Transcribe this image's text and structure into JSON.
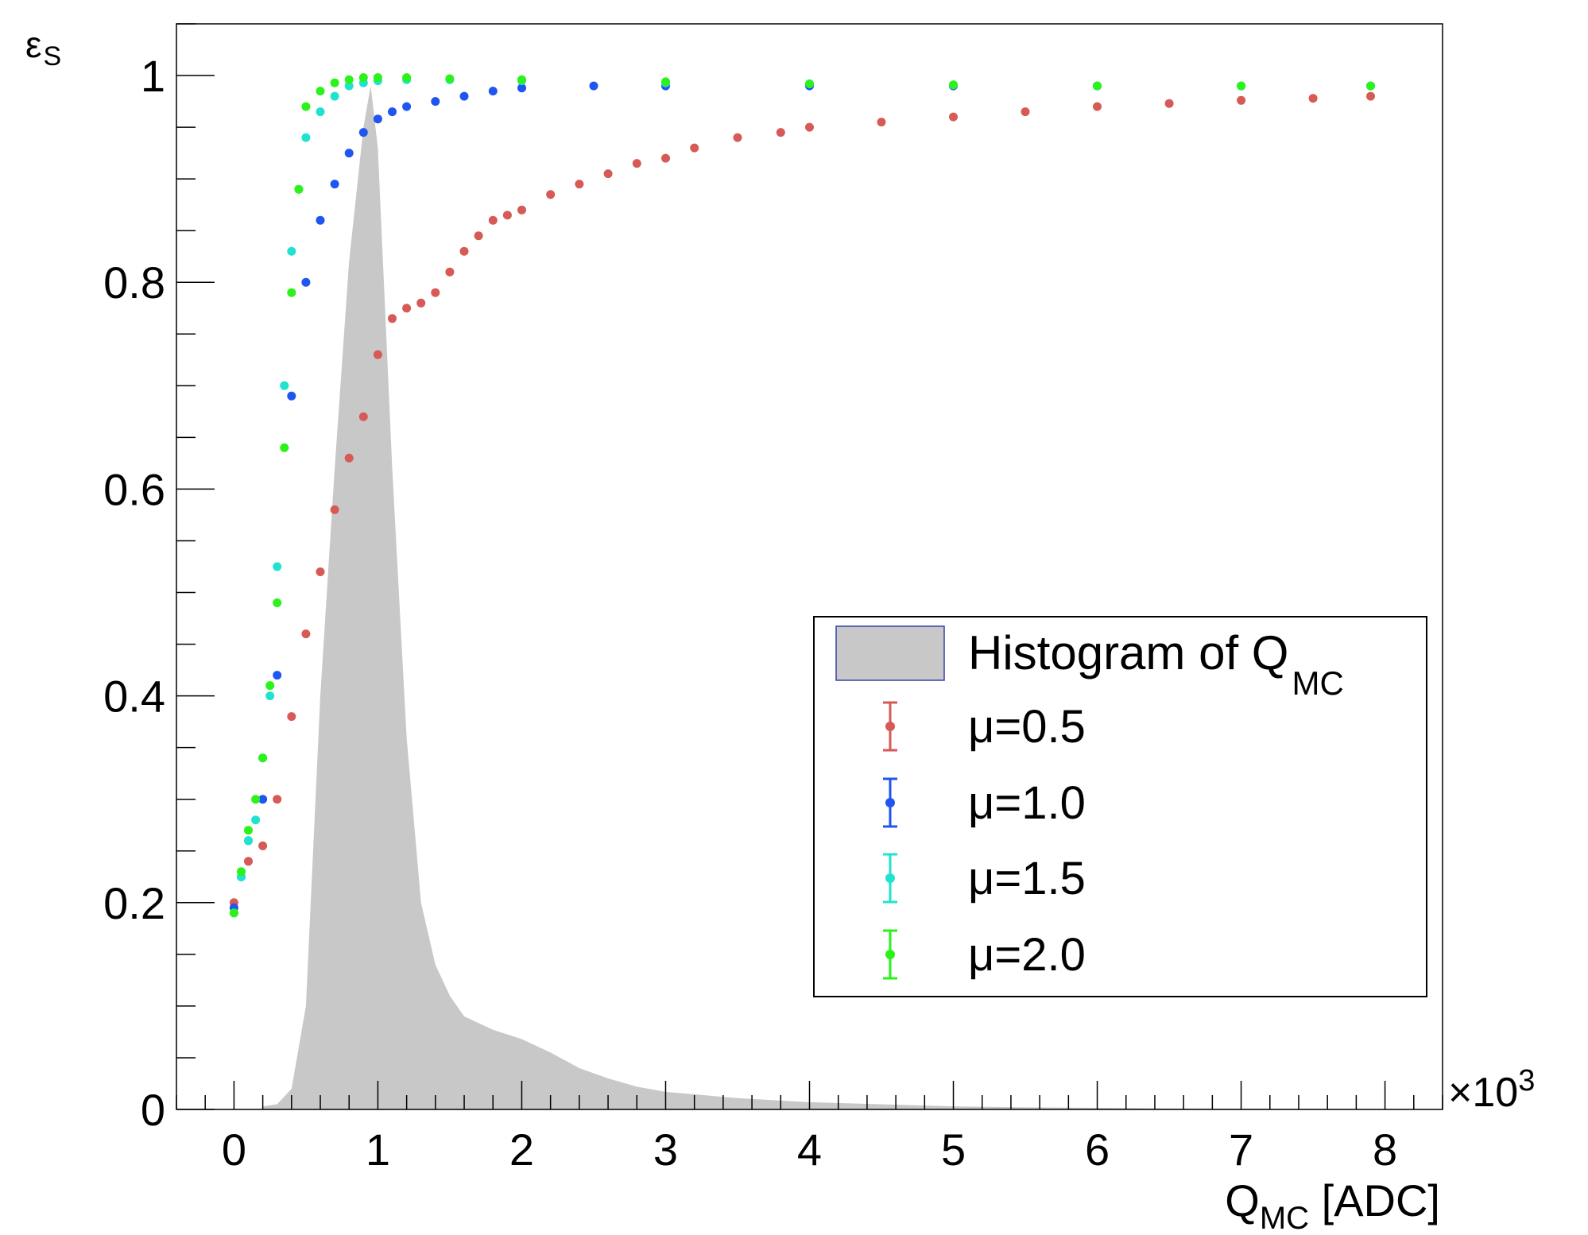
{
  "chart_data": {
    "type": "scatter",
    "title": "",
    "xlabel": {
      "main": "Q",
      "sub": "MC",
      "suffix": " [ADC]"
    },
    "ylabel": {
      "main": "ε",
      "sub": "S"
    },
    "x_multiplier": "×10",
    "x_multiplier_exp": "3",
    "xlim": [
      -0.4,
      8.4
    ],
    "ylim": [
      0,
      1.05
    ],
    "x_tick_labels": [
      "0",
      "1",
      "2",
      "3",
      "4",
      "5",
      "6",
      "7",
      "8"
    ],
    "y_tick_labels": [
      "0",
      "0.2",
      "0.4",
      "0.6",
      "0.8",
      "1"
    ],
    "grid": false,
    "legend_position": "right-center",
    "histogram": {
      "name_main": "Histogram of Q",
      "name_sub": "MC",
      "color": "#c8c8c8",
      "x": [
        0.2,
        0.3,
        0.4,
        0.5,
        0.6,
        0.7,
        0.8,
        0.9,
        0.95,
        1.0,
        1.1,
        1.2,
        1.3,
        1.4,
        1.5,
        1.6,
        1.8,
        2.0,
        2.2,
        2.4,
        2.6,
        2.8,
        3.0,
        3.5,
        4.0,
        4.5,
        5.0,
        5.5,
        6.0,
        6.5,
        7.0,
        7.5,
        8.0
      ],
      "values": [
        0.003,
        0.005,
        0.02,
        0.1,
        0.4,
        0.62,
        0.82,
        0.95,
        0.99,
        0.93,
        0.62,
        0.36,
        0.2,
        0.14,
        0.11,
        0.09,
        0.077,
        0.068,
        0.055,
        0.04,
        0.03,
        0.022,
        0.017,
        0.011,
        0.007,
        0.005,
        0.003,
        0.002,
        0.0015,
        0.001,
        0.0008,
        0.0005,
        0.0003
      ]
    },
    "series": [
      {
        "name": "μ=0.5",
        "color": "#d65a55",
        "x": [
          0.0,
          0.1,
          0.2,
          0.3,
          0.4,
          0.5,
          0.6,
          0.7,
          0.8,
          0.9,
          1.0,
          1.1,
          1.2,
          1.3,
          1.4,
          1.5,
          1.6,
          1.7,
          1.8,
          1.9,
          2.0,
          2.2,
          2.4,
          2.6,
          2.8,
          3.0,
          3.2,
          3.5,
          3.8,
          4.0,
          4.5,
          5.0,
          5.5,
          6.0,
          6.5,
          7.0,
          7.5,
          7.9
        ],
        "values": [
          0.2,
          0.24,
          0.255,
          0.3,
          0.38,
          0.46,
          0.52,
          0.58,
          0.63,
          0.67,
          0.73,
          0.765,
          0.775,
          0.78,
          0.79,
          0.81,
          0.83,
          0.845,
          0.86,
          0.865,
          0.87,
          0.885,
          0.895,
          0.905,
          0.915,
          0.92,
          0.93,
          0.94,
          0.945,
          0.95,
          0.955,
          0.96,
          0.965,
          0.97,
          0.973,
          0.976,
          0.978,
          0.98
        ]
      },
      {
        "name": "μ=1.0",
        "color": "#1f55f0",
        "x": [
          0.0,
          0.05,
          0.1,
          0.2,
          0.3,
          0.4,
          0.5,
          0.6,
          0.7,
          0.8,
          0.9,
          1.0,
          1.1,
          1.2,
          1.4,
          1.6,
          1.8,
          2.0,
          2.5,
          3.0,
          4.0,
          5.0,
          6.0,
          7.0,
          7.9
        ],
        "values": [
          0.195,
          0.225,
          0.26,
          0.3,
          0.42,
          0.69,
          0.8,
          0.86,
          0.895,
          0.925,
          0.945,
          0.958,
          0.965,
          0.97,
          0.975,
          0.98,
          0.985,
          0.988,
          0.99,
          0.99,
          0.99,
          0.99,
          0.99,
          0.99,
          0.99
        ]
      },
      {
        "name": "μ=1.5",
        "color": "#20e3cf",
        "x": [
          0.0,
          0.05,
          0.1,
          0.15,
          0.2,
          0.25,
          0.3,
          0.35,
          0.4,
          0.45,
          0.5,
          0.6,
          0.7,
          0.8,
          0.9,
          1.0,
          1.2,
          1.5,
          2.0,
          3.0,
          4.0,
          5.0,
          6.0,
          7.0,
          7.9
        ],
        "values": [
          0.19,
          0.225,
          0.26,
          0.28,
          0.34,
          0.4,
          0.525,
          0.7,
          0.83,
          0.89,
          0.94,
          0.965,
          0.98,
          0.99,
          0.993,
          0.995,
          0.996,
          0.996,
          0.995,
          0.993,
          0.992,
          0.991,
          0.99,
          0.99,
          0.99
        ]
      },
      {
        "name": "μ=2.0",
        "color": "#2bf21a",
        "x": [
          0.0,
          0.05,
          0.1,
          0.15,
          0.2,
          0.25,
          0.3,
          0.35,
          0.4,
          0.45,
          0.5,
          0.6,
          0.7,
          0.8,
          0.9,
          1.0,
          1.2,
          1.5,
          2.0,
          3.0,
          4.0,
          5.0,
          6.0,
          7.0,
          7.9
        ],
        "values": [
          0.19,
          0.23,
          0.27,
          0.3,
          0.34,
          0.41,
          0.49,
          0.64,
          0.79,
          0.89,
          0.97,
          0.985,
          0.993,
          0.996,
          0.998,
          0.998,
          0.998,
          0.997,
          0.996,
          0.994,
          0.992,
          0.991,
          0.99,
          0.99,
          0.99
        ]
      }
    ]
  }
}
